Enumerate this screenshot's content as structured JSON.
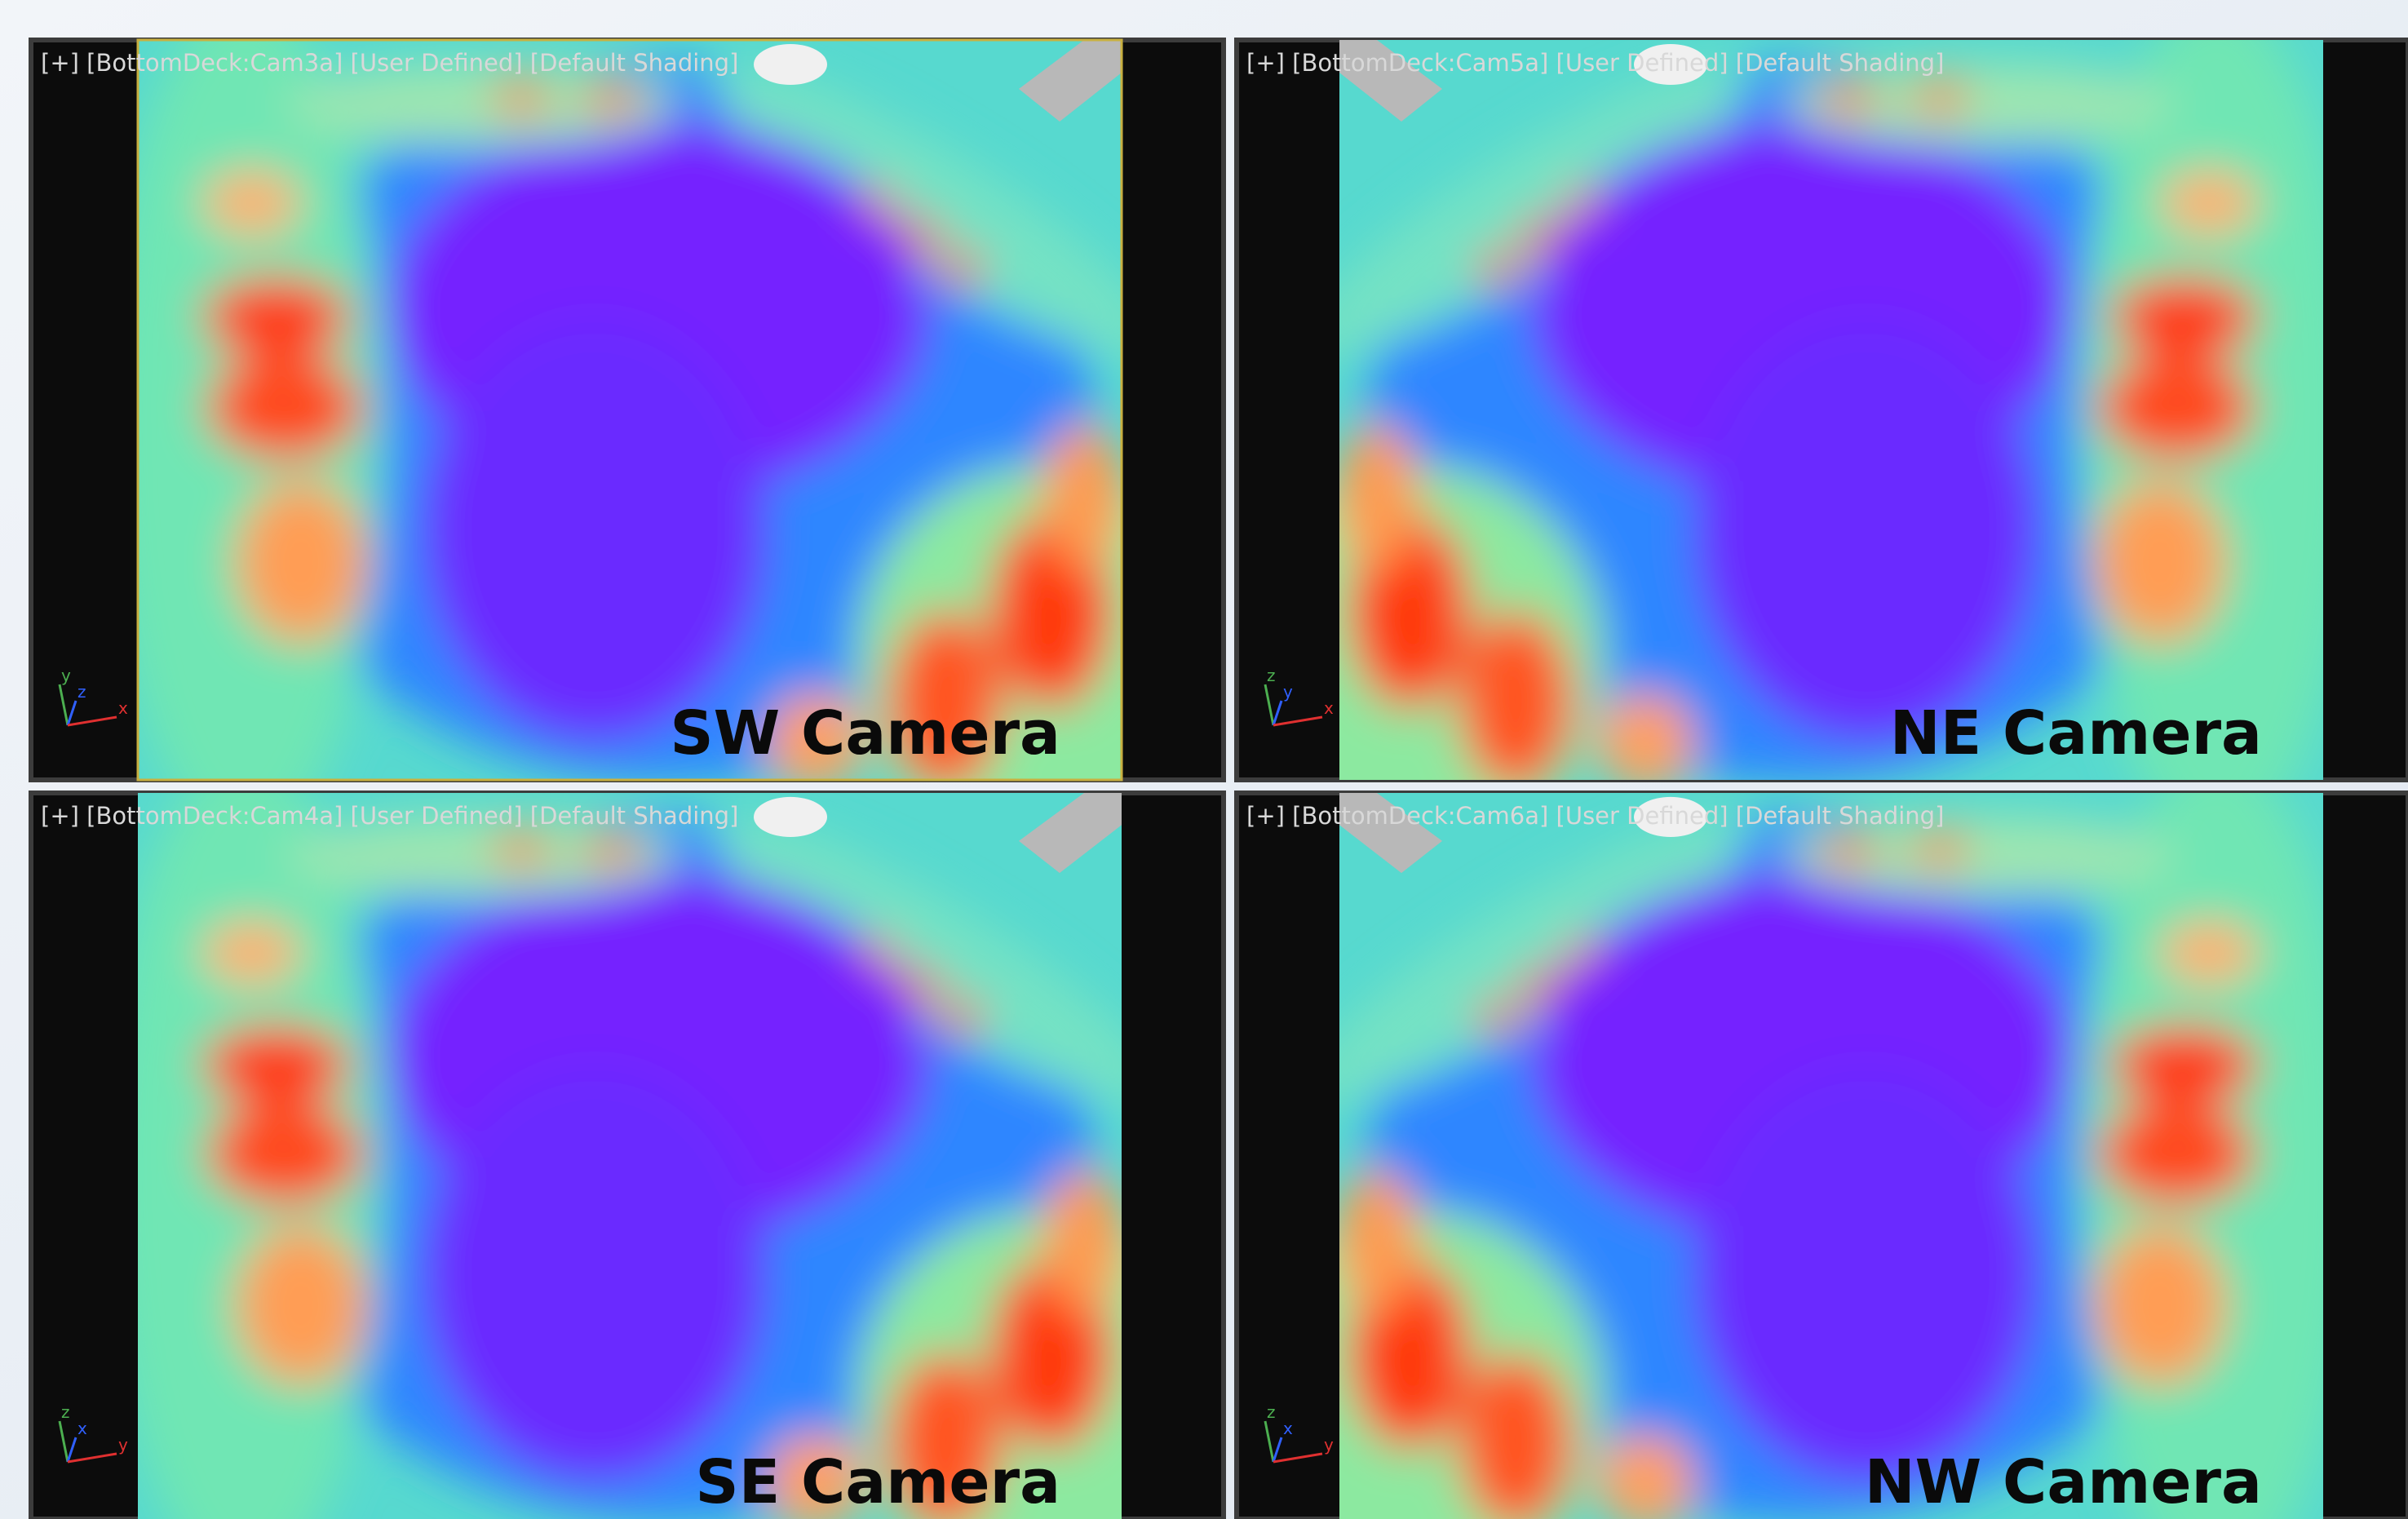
{
  "viewports": [
    {
      "header": "[+] [BottomDeck:Cam3a] [User Defined] [Default Shading]",
      "label": "SW Camera",
      "gizmo": [
        "y",
        "z",
        "x"
      ]
    },
    {
      "header": "[+] [BottomDeck:Cam5a] [User Defined] [Default Shading]",
      "label": "NE Camera",
      "gizmo": [
        "z",
        "y",
        "x"
      ]
    },
    {
      "header": "[+] [BottomDeck:Cam4a] [User Defined] [Default Shading]",
      "label": "SE Camera",
      "gizmo": [
        "z",
        "x",
        "y"
      ]
    },
    {
      "header": "[+] [BottomDeck:Cam6a] [User Defined] [Default Shading]",
      "label": "NW Camera",
      "gizmo": [
        "z",
        "x",
        "y"
      ]
    }
  ]
}
